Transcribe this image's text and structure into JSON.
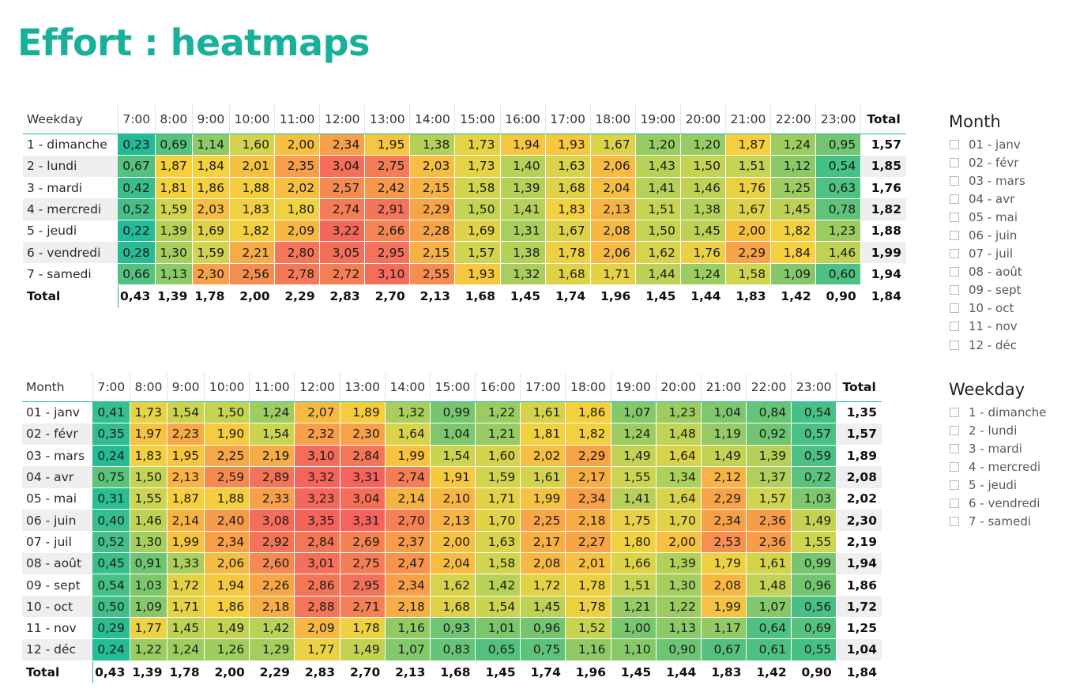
{
  "title": "Effort : heatmaps",
  "hours": [
    "7:00",
    "8:00",
    "9:00",
    "10:00",
    "11:00",
    "12:00",
    "13:00",
    "14:00",
    "15:00",
    "16:00",
    "17:00",
    "18:00",
    "19:00",
    "20:00",
    "21:00",
    "22:00",
    "23:00"
  ],
  "total_label": "Total",
  "weekday_table": {
    "row_header": "Weekday",
    "rows": [
      {
        "label": "1 - dimanche",
        "values": [
          "0,23",
          "0,69",
          "1,14",
          "1,60",
          "2,00",
          "2,34",
          "1,95",
          "1,38",
          "1,73",
          "1,94",
          "1,93",
          "1,67",
          "1,20",
          "1,20",
          "1,87",
          "1,24",
          "0,95"
        ],
        "total": "1,57"
      },
      {
        "label": "2 - lundi",
        "values": [
          "0,67",
          "1,87",
          "1,84",
          "2,01",
          "2,35",
          "3,04",
          "2,75",
          "2,03",
          "1,73",
          "1,40",
          "1,63",
          "2,06",
          "1,43",
          "1,50",
          "1,51",
          "1,12",
          "0,54"
        ],
        "total": "1,85"
      },
      {
        "label": "3 - mardi",
        "values": [
          "0,42",
          "1,81",
          "1,86",
          "1,88",
          "2,02",
          "2,57",
          "2,42",
          "2,15",
          "1,58",
          "1,39",
          "1,68",
          "2,04",
          "1,41",
          "1,46",
          "1,76",
          "1,25",
          "0,63"
        ],
        "total": "1,76"
      },
      {
        "label": "4 - mercredi",
        "values": [
          "0,52",
          "1,59",
          "2,03",
          "1,83",
          "1,80",
          "2,74",
          "2,91",
          "2,29",
          "1,50",
          "1,41",
          "1,83",
          "2,13",
          "1,51",
          "1,38",
          "1,67",
          "1,45",
          "0,78"
        ],
        "total": "1,82"
      },
      {
        "label": "5 - jeudi",
        "values": [
          "0,22",
          "1,39",
          "1,69",
          "1,82",
          "2,09",
          "3,22",
          "2,66",
          "2,28",
          "1,69",
          "1,31",
          "1,67",
          "2,08",
          "1,50",
          "1,45",
          "2,00",
          "1,82",
          "1,23"
        ],
        "total": "1,88"
      },
      {
        "label": "6 - vendredi",
        "values": [
          "0,28",
          "1,30",
          "1,59",
          "2,21",
          "2,80",
          "3,05",
          "2,95",
          "2,15",
          "1,57",
          "1,38",
          "1,78",
          "2,06",
          "1,62",
          "1,76",
          "2,29",
          "1,84",
          "1,46"
        ],
        "total": "1,99"
      },
      {
        "label": "7 - samedi",
        "values": [
          "0,66",
          "1,13",
          "2,30",
          "2,56",
          "2,78",
          "2,72",
          "3,10",
          "2,55",
          "1,93",
          "1,32",
          "1,68",
          "1,71",
          "1,44",
          "1,24",
          "1,58",
          "1,09",
          "0,60"
        ],
        "total": "1,94"
      }
    ],
    "totals": [
      "0,43",
      "1,39",
      "1,78",
      "2,00",
      "2,29",
      "2,83",
      "2,70",
      "2,13",
      "1,68",
      "1,45",
      "1,74",
      "1,96",
      "1,45",
      "1,44",
      "1,83",
      "1,42",
      "0,90"
    ],
    "grand_total": "1,84"
  },
  "month_table": {
    "row_header": "Month",
    "rows": [
      {
        "label": "01 - janv",
        "values": [
          "0,41",
          "1,73",
          "1,54",
          "1,50",
          "1,24",
          "2,07",
          "1,89",
          "1,32",
          "0,99",
          "1,22",
          "1,61",
          "1,86",
          "1,07",
          "1,23",
          "1,04",
          "0,84",
          "0,54"
        ],
        "total": "1,35"
      },
      {
        "label": "02 - févr",
        "values": [
          "0,35",
          "1,97",
          "2,23",
          "1,90",
          "1,54",
          "2,32",
          "2,30",
          "1,64",
          "1,04",
          "1,21",
          "1,81",
          "1,82",
          "1,24",
          "1,48",
          "1,19",
          "0,92",
          "0,57"
        ],
        "total": "1,57"
      },
      {
        "label": "03 - mars",
        "values": [
          "0,24",
          "1,83",
          "1,95",
          "2,25",
          "2,19",
          "3,10",
          "2,84",
          "1,99",
          "1,54",
          "1,60",
          "2,02",
          "2,29",
          "1,49",
          "1,64",
          "1,49",
          "1,39",
          "0,59"
        ],
        "total": "1,89"
      },
      {
        "label": "04 - avr",
        "values": [
          "0,75",
          "1,50",
          "2,13",
          "2,59",
          "2,89",
          "3,32",
          "3,31",
          "2,74",
          "1,91",
          "1,59",
          "1,61",
          "2,17",
          "1,55",
          "1,34",
          "2,12",
          "1,37",
          "0,72"
        ],
        "total": "2,08"
      },
      {
        "label": "05 - mai",
        "values": [
          "0,31",
          "1,55",
          "1,87",
          "1,88",
          "2,33",
          "3,23",
          "3,04",
          "2,14",
          "2,10",
          "1,71",
          "1,99",
          "2,34",
          "1,41",
          "1,64",
          "2,29",
          "1,57",
          "1,03"
        ],
        "total": "2,02"
      },
      {
        "label": "06 - juin",
        "values": [
          "0,40",
          "1,46",
          "2,14",
          "2,40",
          "3,08",
          "3,35",
          "3,31",
          "2,70",
          "2,13",
          "1,70",
          "2,25",
          "2,18",
          "1,75",
          "1,70",
          "2,34",
          "2,36",
          "1,49"
        ],
        "total": "2,30"
      },
      {
        "label": "07 - juil",
        "values": [
          "0,52",
          "1,30",
          "1,99",
          "2,34",
          "2,92",
          "2,84",
          "2,69",
          "2,37",
          "2,00",
          "1,63",
          "2,17",
          "2,27",
          "1,80",
          "2,00",
          "2,53",
          "2,36",
          "1,55"
        ],
        "total": "2,19"
      },
      {
        "label": "08 - août",
        "values": [
          "0,45",
          "0,91",
          "1,33",
          "2,06",
          "2,60",
          "3,01",
          "2,75",
          "2,47",
          "2,04",
          "1,58",
          "2,08",
          "2,01",
          "1,66",
          "1,39",
          "1,79",
          "1,61",
          "0,99"
        ],
        "total": "1,94"
      },
      {
        "label": "09 - sept",
        "values": [
          "0,54",
          "1,03",
          "1,72",
          "1,94",
          "2,26",
          "2,86",
          "2,95",
          "2,34",
          "1,62",
          "1,42",
          "1,72",
          "1,78",
          "1,51",
          "1,30",
          "2,08",
          "1,48",
          "0,96"
        ],
        "total": "1,86"
      },
      {
        "label": "10 - oct",
        "values": [
          "0,50",
          "1,09",
          "1,71",
          "1,86",
          "2,18",
          "2,88",
          "2,71",
          "2,18",
          "1,68",
          "1,54",
          "1,45",
          "1,78",
          "1,21",
          "1,22",
          "1,99",
          "1,07",
          "0,56"
        ],
        "total": "1,72"
      },
      {
        "label": "11 - nov",
        "values": [
          "0,29",
          "1,77",
          "1,45",
          "1,49",
          "1,42",
          "2,09",
          "1,78",
          "1,16",
          "0,93",
          "1,01",
          "0,96",
          "1,52",
          "1,00",
          "1,13",
          "1,17",
          "0,64",
          "0,69"
        ],
        "total": "1,25"
      },
      {
        "label": "12 - déc",
        "values": [
          "0,24",
          "1,22",
          "1,24",
          "1,26",
          "1,29",
          "1,77",
          "1,49",
          "1,07",
          "0,83",
          "0,65",
          "0,75",
          "1,16",
          "1,10",
          "0,90",
          "0,67",
          "0,61",
          "0,55"
        ],
        "total": "1,04"
      }
    ],
    "totals": [
      "0,43",
      "1,39",
      "1,78",
      "2,00",
      "2,29",
      "2,83",
      "2,70",
      "2,13",
      "1,68",
      "1,45",
      "1,74",
      "1,96",
      "1,45",
      "1,44",
      "1,83",
      "1,42",
      "0,90"
    ],
    "grand_total": "1,84"
  },
  "slicers": {
    "month": {
      "title": "Month",
      "items": [
        "01 - janv",
        "02 - févr",
        "03 - mars",
        "04 - avr",
        "05 - mai",
        "06 - juin",
        "07 - juil",
        "08 - août",
        "09 - sept",
        "10 - oct",
        "11 - nov",
        "12 - déc"
      ]
    },
    "weekday": {
      "title": "Weekday",
      "items": [
        "1 - dimanche",
        "2 - lundi",
        "3 - mardi",
        "4 - mercredi",
        "5 - jeudi",
        "6 - vendredi",
        "7 - samedi"
      ]
    }
  },
  "colors": {
    "title": "#16b09b",
    "low": "#2fbf94",
    "mid": "#f5d13c",
    "high": "#f2625c"
  }
}
